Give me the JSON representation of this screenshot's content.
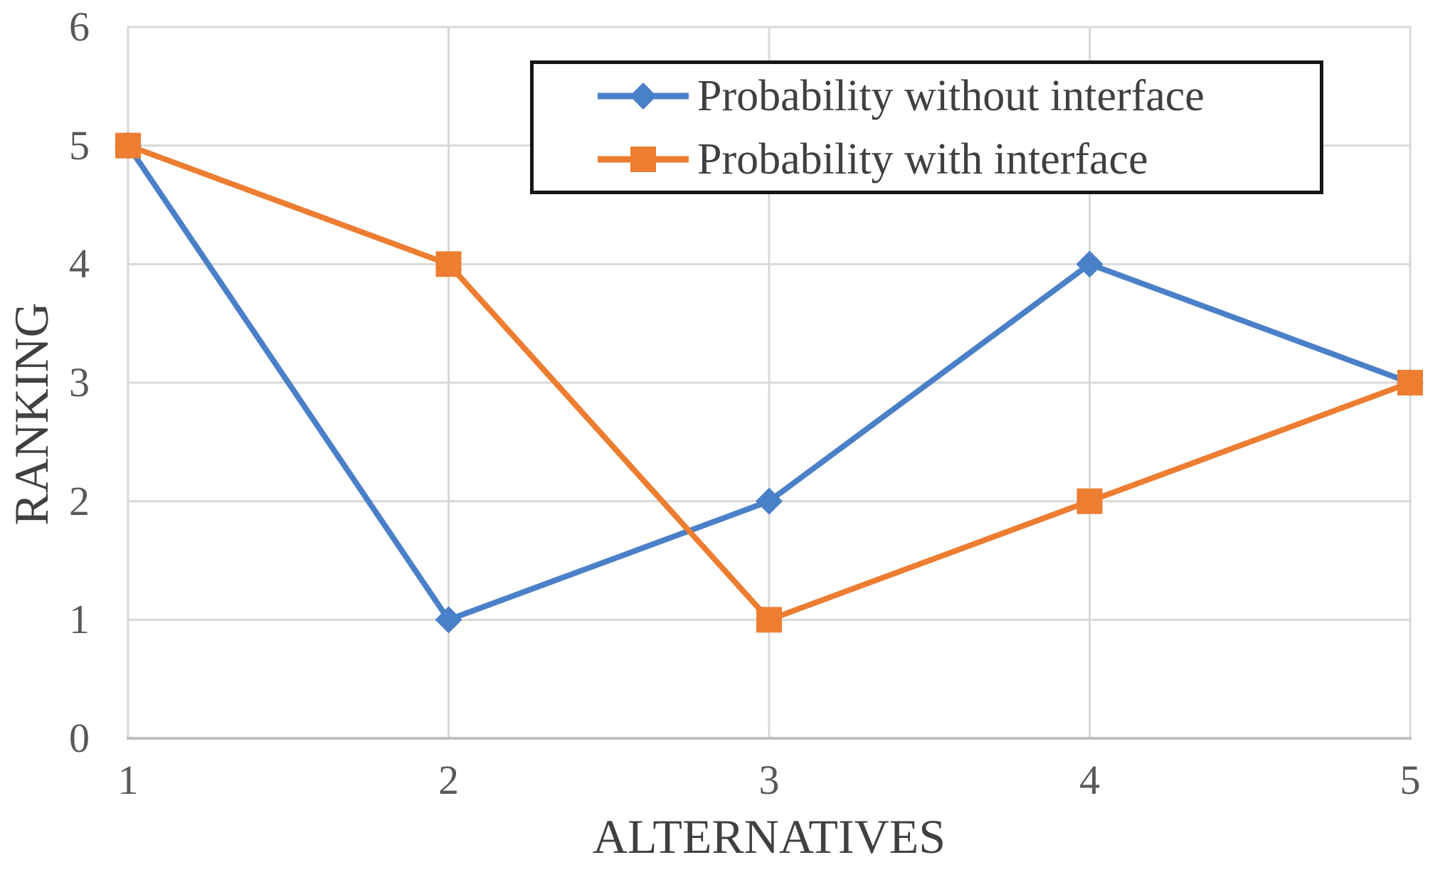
{
  "figure": {
    "background": "#ffffff"
  },
  "chart_data": {
    "type": "line",
    "title": "",
    "x": [
      1,
      2,
      3,
      4,
      5
    ],
    "xlabel": "ALTERNATIVES",
    "ylabel": "RANKING",
    "xlim": [
      1,
      5
    ],
    "ylim": [
      0,
      6
    ],
    "yticks": [
      0,
      1,
      2,
      3,
      4,
      5,
      6
    ],
    "grid": true,
    "plot_border": true,
    "legend_position": "top-center inside plot, boxed",
    "series": [
      {
        "name": "Probability without interface",
        "values": [
          5,
          1,
          2,
          4,
          3
        ],
        "color": "#4A80C8",
        "marker": "diamond"
      },
      {
        "name": "Probability with interface",
        "values": [
          5,
          4,
          1,
          2,
          3
        ],
        "color": "#ED7D31",
        "marker": "square"
      }
    ],
    "colors": {
      "gridline": "#D9D9D9",
      "axis_line": "#BFBFBF",
      "tick_label": "#595959",
      "axis_title": "#404040",
      "legend_text": "#404040",
      "legend_border": "#151515"
    }
  }
}
